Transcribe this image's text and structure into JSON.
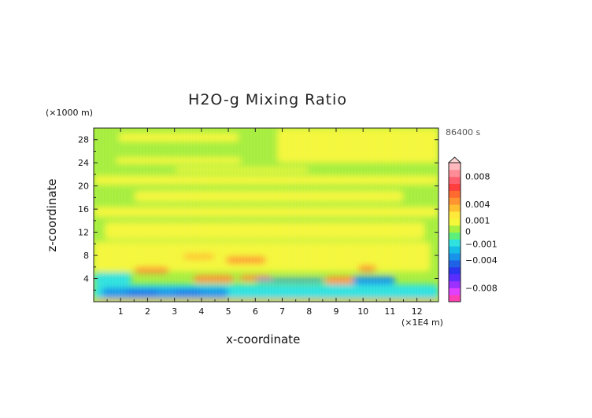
{
  "chart_data": {
    "type": "heatmap",
    "title": "H2O-g Mixing Ratio",
    "xlabel": "x-coordinate",
    "ylabel": "z-coordinate",
    "x_unit": "(×1E4 m)",
    "y_unit": "(×1000 m)",
    "time_label": "86400 s",
    "xlim": [
      0,
      12.8
    ],
    "ylim": [
      0,
      30
    ],
    "x_ticks": [
      1,
      2,
      3,
      4,
      5,
      6,
      7,
      8,
      9,
      10,
      11,
      12
    ],
    "y_ticks": [
      4,
      8,
      12,
      16,
      20,
      24,
      28
    ],
    "colorbar": {
      "labels": [
        "0.008",
        "0.004",
        "0.001",
        "0",
        "−0.001",
        "−0.004",
        "−0.008"
      ],
      "label_values": [
        0.008,
        0.004,
        0.001,
        0,
        -0.001,
        -0.004,
        -0.008
      ],
      "range": [
        -0.01,
        0.01
      ],
      "colors": [
        "#ff3fb4",
        "#e040ff",
        "#9b30ff",
        "#5a2dff",
        "#2a35f0",
        "#1f62e6",
        "#1793ea",
        "#16bde6",
        "#2fe2e0",
        "#5cf07a",
        "#a8f040",
        "#f4f73a",
        "#ffe93a",
        "#ffbf30",
        "#ff9430",
        "#ff6a2e",
        "#ff3e3e",
        "#ff5f6e",
        "#ff8c96",
        "#ffb9bd"
      ]
    },
    "field": {
      "background": "#a6ee3e",
      "regions": [
        {
          "kind": "positive-weak",
          "color": "#f4f73a",
          "x": [
            0.9,
            5.4
          ],
          "z": [
            27.6,
            29.2
          ]
        },
        {
          "kind": "positive-weak",
          "color": "#f4f73a",
          "x": [
            6.8,
            12.8
          ],
          "z": [
            24.0,
            30.0
          ]
        },
        {
          "kind": "positive-weak",
          "color": "#f4f73a",
          "x": [
            0.8,
            5.5
          ],
          "z": [
            23.8,
            25.0
          ]
        },
        {
          "kind": "positive-weak",
          "color": "#f4f73a",
          "x": [
            3.0,
            8.0
          ],
          "z": [
            22.4,
            23.2
          ]
        },
        {
          "kind": "positive-weak",
          "color": "#f4f73a",
          "x": [
            0.0,
            12.8
          ],
          "z": [
            20.2,
            21.8
          ]
        },
        {
          "kind": "positive-weak",
          "color": "#f4f73a",
          "x": [
            1.5,
            11.5
          ],
          "z": [
            17.2,
            19.2
          ]
        },
        {
          "kind": "positive-weak",
          "color": "#f4f73a",
          "x": [
            0.0,
            12.8
          ],
          "z": [
            14.6,
            16.4
          ]
        },
        {
          "kind": "positive-weak",
          "color": "#f4f73a",
          "x": [
            0.4,
            12.3
          ],
          "z": [
            10.8,
            13.8
          ]
        },
        {
          "kind": "positive-weak",
          "color": "#f4f73a",
          "x": [
            0.0,
            12.5
          ],
          "z": [
            5.2,
            10.4
          ]
        },
        {
          "kind": "positive",
          "color": "#ffbf30",
          "x": [
            3.3,
            4.5
          ],
          "z": [
            7.3,
            8.3
          ]
        },
        {
          "kind": "positive",
          "color": "#ff9430",
          "x": [
            4.9,
            6.4
          ],
          "z": [
            6.6,
            7.8
          ]
        },
        {
          "kind": "positive",
          "color": "#ff9430",
          "x": [
            1.5,
            2.8
          ],
          "z": [
            4.9,
            6.0
          ]
        },
        {
          "kind": "positive",
          "color": "#ff9430",
          "x": [
            3.7,
            5.2
          ],
          "z": [
            3.3,
            4.6
          ]
        },
        {
          "kind": "positive",
          "color": "#ff9430",
          "x": [
            5.4,
            6.6
          ],
          "z": [
            3.6,
            4.6
          ]
        },
        {
          "kind": "positive",
          "color": "#ff9430",
          "x": [
            8.6,
            10.0
          ],
          "z": [
            3.0,
            4.4
          ]
        },
        {
          "kind": "positive",
          "color": "#ff9430",
          "x": [
            9.8,
            10.5
          ],
          "z": [
            5.2,
            6.3
          ]
        },
        {
          "kind": "negative-weak",
          "color": "#2fe2e0",
          "x": [
            0.0,
            1.4
          ],
          "z": [
            3.0,
            5.0
          ]
        },
        {
          "kind": "negative-weak",
          "color": "#2fe2e0",
          "x": [
            0.0,
            12.8
          ],
          "z": [
            0.4,
            3.0
          ]
        },
        {
          "kind": "negative",
          "color": "#1793ea",
          "x": [
            0.3,
            5.0
          ],
          "z": [
            0.8,
            2.4
          ]
        },
        {
          "kind": "negative",
          "color": "#1793ea",
          "x": [
            6.0,
            8.6
          ],
          "z": [
            3.4,
            4.0
          ]
        },
        {
          "kind": "negative",
          "color": "#1793ea",
          "x": [
            9.6,
            11.2
          ],
          "z": [
            3.0,
            4.4
          ]
        },
        {
          "kind": "negative",
          "color": "#1f62e6",
          "x": [
            1.2,
            2.4
          ],
          "z": [
            1.2,
            2.0
          ]
        },
        {
          "kind": "negative",
          "color": "#1f62e6",
          "x": [
            3.0,
            4.0
          ],
          "z": [
            1.3,
            1.9
          ]
        },
        {
          "kind": "surface",
          "color": "#ff9430",
          "x": [
            0.0,
            12.8
          ],
          "z": [
            0.0,
            0.5
          ]
        }
      ]
    }
  }
}
